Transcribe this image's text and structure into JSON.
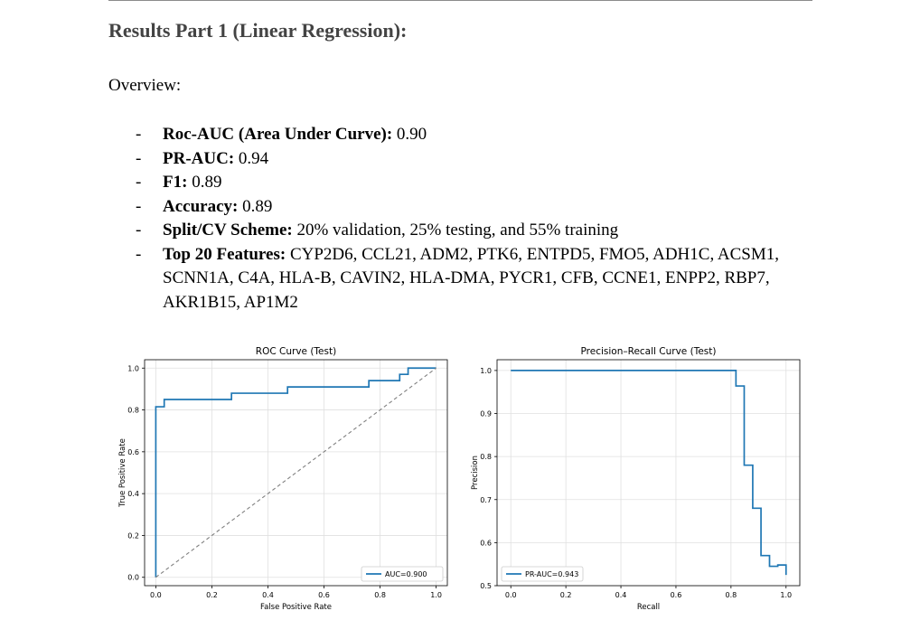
{
  "document": {
    "title": "Results Part 1 (Linear Regression):",
    "overview": "Overview:",
    "metrics": [
      {
        "label": "Roc-AUC (Area Under Curve):",
        "value": " 0.90"
      },
      {
        "label": "PR-AUC:",
        "value": " 0.94"
      },
      {
        "label": "F1:",
        "value": " 0.89"
      },
      {
        "label": "Accuracy:",
        "value": " 0.89"
      },
      {
        "label": "Split/CV Scheme:",
        "value": " 20% validation, 25% testing, and 55% training"
      },
      {
        "label": "Top 20 Features:",
        "value": " CYP2D6, CCL21, ADM2, PTK6, ENTPD5, FMO5, ADH1C, ACSM1, SCNN1A, C4A, HLA-B, CAVIN2, HLA-DMA, PYCR1, CFB, CCNE1, ENPP2, RBP7, AKR1B15, AP1M2"
      }
    ],
    "bullet_symbol": "-"
  },
  "chart_data": [
    {
      "type": "line",
      "title": "ROC Curve (Test)",
      "xlabel": "False Positive Rate",
      "ylabel": "True Positive Rate",
      "xlim": [
        -0.04,
        1.04
      ],
      "ylim": [
        -0.04,
        1.04
      ],
      "xticks": [
        "0.0",
        "0.2",
        "0.4",
        "0.6",
        "0.8",
        "1.0"
      ],
      "yticks": [
        "0.0",
        "0.2",
        "0.4",
        "0.6",
        "0.8",
        "1.0"
      ],
      "grid": true,
      "legend_position": "lower-right",
      "series": [
        {
          "name": "AUC=0.900",
          "color": "#1f77b4",
          "x": [
            0,
            0,
            0.03,
            0.03,
            0.27,
            0.27,
            0.47,
            0.47,
            0.76,
            0.76,
            0.87,
            0.87,
            0.9,
            0.9,
            1.0
          ],
          "y": [
            0,
            0.815,
            0.815,
            0.85,
            0.85,
            0.88,
            0.88,
            0.91,
            0.91,
            0.94,
            0.94,
            0.97,
            0.97,
            1.0,
            1.0
          ]
        },
        {
          "name": "",
          "color": "#808080",
          "dashed": true,
          "x": [
            0,
            1
          ],
          "y": [
            0,
            1
          ]
        }
      ]
    },
    {
      "type": "line",
      "title": "Precision–Recall Curve (Test)",
      "xlabel": "Recall",
      "ylabel": "Precision",
      "xlim": [
        -0.05,
        1.05
      ],
      "ylim": [
        0.5,
        1.025
      ],
      "xticks": [
        "0.0",
        "0.2",
        "0.4",
        "0.6",
        "0.8",
        "1.0"
      ],
      "yticks": [
        "0.5",
        "0.6",
        "0.7",
        "0.8",
        "0.9",
        "1.0"
      ],
      "grid": true,
      "legend_position": "lower-left",
      "series": [
        {
          "name": "PR-AUC=0.943",
          "color": "#1f77b4",
          "x": [
            0,
            0.818,
            0.818,
            0.848,
            0.848,
            0.879,
            0.879,
            0.909,
            0.909,
            0.94,
            0.94,
            0.97,
            0.97,
            1.0,
            1.0
          ],
          "y": [
            1.0,
            1.0,
            0.964,
            0.964,
            0.78,
            0.78,
            0.68,
            0.68,
            0.57,
            0.57,
            0.545,
            0.545,
            0.548,
            0.548,
            0.525
          ]
        }
      ]
    }
  ]
}
